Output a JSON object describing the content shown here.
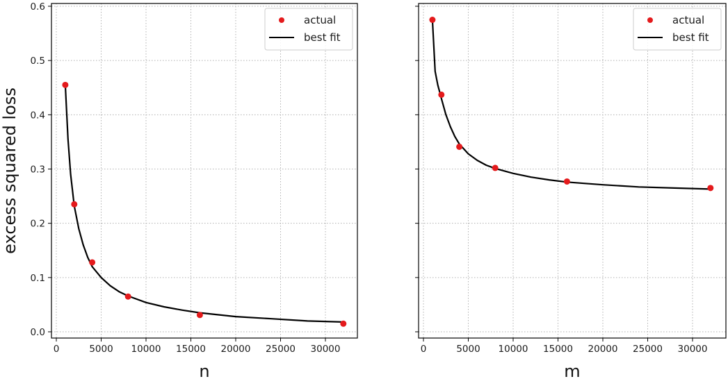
{
  "chart_data": [
    {
      "type": "line",
      "panel": "left",
      "title": "",
      "xlabel": "n",
      "ylabel": "excess squared loss",
      "xlim": [
        -1550,
        33550
      ],
      "ylim": [
        -0.012,
        0.605
      ],
      "xticks": [
        0,
        5000,
        10000,
        15000,
        20000,
        25000,
        30000
      ],
      "xtick_labels": [
        "0",
        "5000",
        "10000",
        "15000",
        "20000",
        "25000",
        "30000"
      ],
      "yticks": [
        0.0,
        0.1,
        0.2,
        0.3,
        0.4,
        0.5,
        0.6
      ],
      "ytick_labels": [
        "0.0",
        "0.1",
        "0.2",
        "0.3",
        "0.4",
        "0.5",
        "0.6"
      ],
      "grid": true,
      "legend_position": "upper right",
      "series": [
        {
          "name": "actual",
          "style": "scatter",
          "color": "#e41a1c",
          "x": [
            1000,
            2000,
            4000,
            8000,
            16000,
            32000
          ],
          "y": [
            0.455,
            0.235,
            0.128,
            0.065,
            0.031,
            0.015
          ]
        },
        {
          "name": "best fit",
          "style": "line",
          "color": "#000000",
          "x": [
            1000,
            1300,
            1600,
            2000,
            2500,
            3000,
            3500,
            4000,
            5000,
            6000,
            7000,
            8000,
            10000,
            12000,
            14000,
            16000,
            20000,
            24000,
            28000,
            32000
          ],
          "y": [
            0.455,
            0.355,
            0.29,
            0.232,
            0.19,
            0.16,
            0.137,
            0.12,
            0.1,
            0.085,
            0.074,
            0.066,
            0.054,
            0.046,
            0.04,
            0.035,
            0.028,
            0.024,
            0.02,
            0.018
          ]
        }
      ]
    },
    {
      "type": "line",
      "panel": "right",
      "title": "",
      "xlabel": "m",
      "ylabel": "",
      "xlim": [
        -1550,
        33550
      ],
      "ylim": [
        -0.012,
        0.605
      ],
      "xticks": [
        0,
        5000,
        10000,
        15000,
        20000,
        25000,
        30000
      ],
      "xtick_labels": [
        "0",
        "5000",
        "10000",
        "15000",
        "20000",
        "25000",
        "30000"
      ],
      "yticks": [
        0.0,
        0.1,
        0.2,
        0.3,
        0.4,
        0.5,
        0.6
      ],
      "ytick_labels": [],
      "grid": true,
      "legend_position": "upper right",
      "series": [
        {
          "name": "actual",
          "style": "scatter",
          "color": "#e41a1c",
          "x": [
            1000,
            2000,
            4000,
            8000,
            16000,
            32000
          ],
          "y": [
            0.575,
            0.437,
            0.341,
            0.302,
            0.277,
            0.265
          ]
        },
        {
          "name": "best fit",
          "style": "line",
          "color": "#000000",
          "x": [
            1000,
            1300,
            1600,
            2000,
            2500,
            3000,
            3500,
            4000,
            5000,
            6000,
            7000,
            8000,
            10000,
            12000,
            14000,
            16000,
            20000,
            24000,
            28000,
            32000
          ],
          "y": [
            0.575,
            0.48,
            0.455,
            0.43,
            0.4,
            0.378,
            0.36,
            0.346,
            0.328,
            0.316,
            0.307,
            0.301,
            0.292,
            0.285,
            0.28,
            0.276,
            0.271,
            0.267,
            0.265,
            0.263
          ]
        }
      ]
    }
  ],
  "legend": {
    "actual_label": "actual",
    "fit_label": "best fit"
  }
}
